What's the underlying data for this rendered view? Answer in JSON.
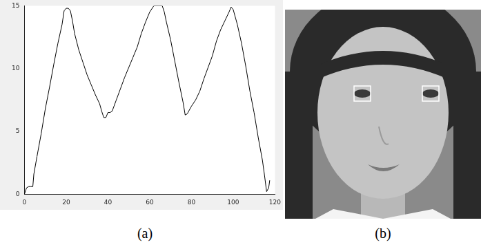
{
  "chart_data": {
    "type": "line",
    "x": [
      0,
      1,
      2,
      3,
      4,
      4.5,
      6,
      8,
      10,
      12,
      14,
      16,
      18,
      19,
      20,
      21,
      22,
      23,
      24,
      26,
      28,
      30,
      32,
      34,
      36,
      37,
      38,
      39,
      40,
      41,
      42,
      44,
      46,
      48,
      50,
      52,
      54,
      56,
      58,
      60,
      62,
      64,
      66,
      67,
      68,
      70,
      72,
      74,
      76,
      77,
      78,
      80,
      82,
      84,
      86,
      88,
      90,
      92,
      94,
      96,
      98,
      99,
      100,
      102,
      104,
      106,
      108,
      110,
      112,
      114,
      115,
      116,
      117,
      117.5
    ],
    "values": [
      0,
      0.5,
      0.6,
      0.6,
      0.6,
      1.6,
      3,
      4.8,
      6.8,
      8.5,
      10.3,
      12,
      13.5,
      14.6,
      14.8,
      14.8,
      14.6,
      13.8,
      12.8,
      11.5,
      10.5,
      9.5,
      8.7,
      7.9,
      7.2,
      6.6,
      6.1,
      6.1,
      6.5,
      6.5,
      6.6,
      7.5,
      8.4,
      9.3,
      10.1,
      10.9,
      11.7,
      12.8,
      13.7,
      14.5,
      15,
      15,
      15,
      14.5,
      13.7,
      12.3,
      10.6,
      8.9,
      7.3,
      6.3,
      6.4,
      7,
      7.5,
      8.2,
      9.2,
      10.1,
      11,
      12.2,
      13.1,
      13.8,
      14.5,
      14.9,
      14.7,
      13.5,
      12,
      10.2,
      8.2,
      6.5,
      4.5,
      2.7,
      1.5,
      0.2,
      0.5,
      1.1
    ],
    "color": "#000000",
    "xlim": [
      0,
      120
    ],
    "xticks": [
      0,
      20,
      40,
      60,
      80,
      100,
      120
    ],
    "ylim": [
      0,
      15
    ],
    "yticks": [
      0,
      5,
      10,
      15
    ],
    "grid": false
  },
  "captions": [
    "(a)",
    "(b)"
  ]
}
